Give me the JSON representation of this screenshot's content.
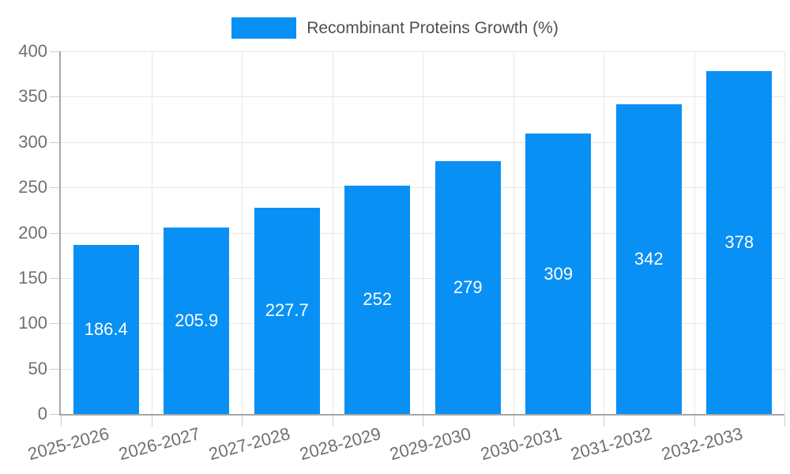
{
  "legend": {
    "label": "Recombinant Proteins Growth (%)"
  },
  "colors": {
    "bar": "#0890f4",
    "grid": "#e8e8e8",
    "axis": "#a6a6a6",
    "tick_mark": "#cccccc",
    "tick_label": "#707070",
    "legend_label": "#4f4f4f",
    "bar_label": "#ffffff"
  },
  "chart_data": {
    "type": "bar",
    "title": "Recombinant Proteins Growth (%)",
    "categories": [
      "2025-2026",
      "2026-2027",
      "2027-2028",
      "2028-2029",
      "2029-2030",
      "2030-2031",
      "2031-2032",
      "2032-2033"
    ],
    "values": [
      186.4,
      205.9,
      227.7,
      252,
      279,
      309,
      342,
      378
    ],
    "value_labels": [
      "186.4",
      "205.9",
      "227.7",
      "252",
      "279",
      "309",
      "342",
      "378"
    ],
    "xlabel": "",
    "ylabel": "",
    "ylim": [
      0,
      400
    ],
    "yticks": [
      0,
      50,
      100,
      150,
      200,
      250,
      300,
      350,
      400
    ],
    "grid": true,
    "legend_position": "top-center",
    "bar_label_position": "center",
    "x_label_rotation_deg": -15
  }
}
